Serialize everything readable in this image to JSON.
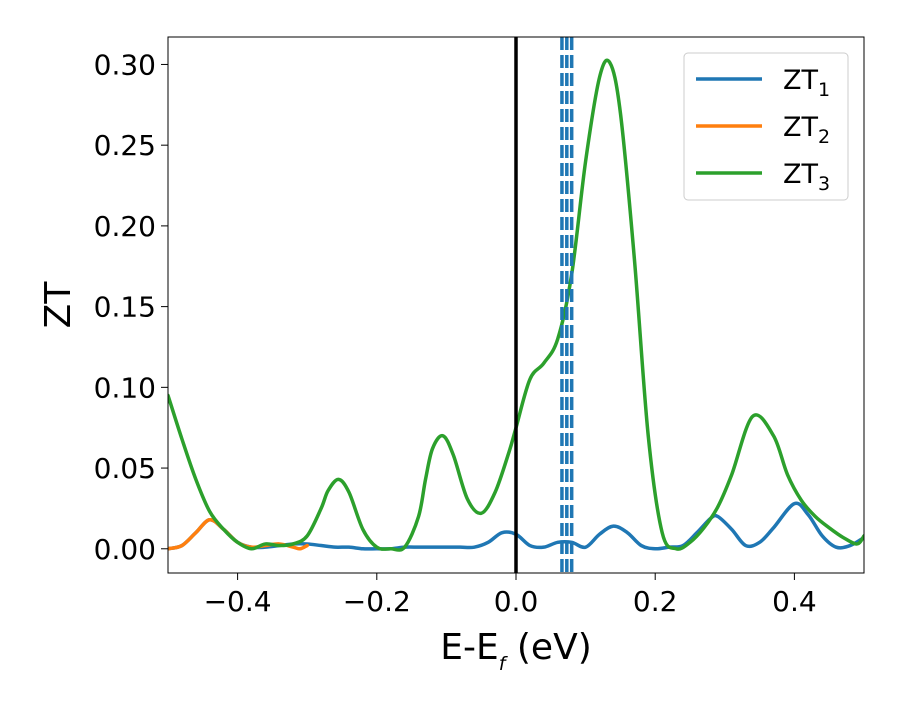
{
  "chart_data": {
    "type": "line",
    "title": "",
    "xlabel": "E-E",
    "xlabel_sub": "f",
    "xlabel_unit": " (eV)",
    "ylabel": "ZT",
    "xlim": [
      -0.5,
      0.5
    ],
    "ylim": [
      -0.015,
      0.317
    ],
    "x_ticks": [
      -0.4,
      -0.2,
      0.0,
      0.2,
      0.4
    ],
    "x_tick_labels": [
      "−0.4",
      "−0.2",
      "0.0",
      "0.2",
      "0.4"
    ],
    "y_ticks": [
      0.0,
      0.05,
      0.1,
      0.15,
      0.2,
      0.25,
      0.3
    ],
    "y_tick_labels": [
      "0.00",
      "0.05",
      "0.10",
      "0.15",
      "0.20",
      "0.25",
      "0.30"
    ],
    "grid": false,
    "legend_position": "top-right",
    "vertical_lines": [
      {
        "x": 0.0,
        "style": "solid",
        "color": "#000000"
      },
      {
        "x": 0.066,
        "style": "dashed",
        "color": "#1f77b4"
      },
      {
        "x": 0.073,
        "style": "dashed",
        "color": "#1f77b4"
      },
      {
        "x": 0.08,
        "style": "dashed",
        "color": "#1f77b4"
      }
    ],
    "series": [
      {
        "name": "ZT",
        "name_sub": "1",
        "color": "#1f77b4",
        "x": [
          -0.5,
          -0.48,
          -0.46,
          -0.44,
          -0.42,
          -0.4,
          -0.38,
          -0.36,
          -0.34,
          -0.32,
          -0.3,
          -0.28,
          -0.26,
          -0.24,
          -0.22,
          -0.2,
          -0.18,
          -0.16,
          -0.14,
          -0.12,
          -0.1,
          -0.08,
          -0.06,
          -0.04,
          -0.02,
          0.0,
          0.02,
          0.04,
          0.06,
          0.08,
          0.1,
          0.12,
          0.14,
          0.16,
          0.18,
          0.2,
          0.22,
          0.24,
          0.26,
          0.28,
          0.29,
          0.31,
          0.33,
          0.35,
          0.37,
          0.4,
          0.42,
          0.44,
          0.46,
          0.48,
          0.5
        ],
        "y": [
          0.0,
          0.002,
          0.01,
          0.018,
          0.012,
          0.004,
          0.001,
          0.001,
          0.002,
          0.003,
          0.003,
          0.002,
          0.001,
          0.001,
          0.0,
          0.0,
          0.0,
          0.001,
          0.001,
          0.001,
          0.001,
          0.001,
          0.001,
          0.004,
          0.01,
          0.009,
          0.002,
          0.001,
          0.004,
          0.004,
          0.001,
          0.009,
          0.014,
          0.01,
          0.002,
          0.0,
          0.001,
          0.002,
          0.01,
          0.019,
          0.02,
          0.012,
          0.002,
          0.004,
          0.013,
          0.028,
          0.021,
          0.008,
          0.001,
          0.002,
          0.007
        ]
      },
      {
        "name": "ZT",
        "name_sub": "2",
        "color": "#ff7f0e",
        "x": [
          -0.5,
          -0.48,
          -0.46,
          -0.44,
          -0.42,
          -0.4,
          -0.38,
          -0.36,
          -0.34,
          -0.32,
          -0.31,
          -0.3
        ],
        "y": [
          0.0,
          0.002,
          0.01,
          0.018,
          0.012,
          0.004,
          0.001,
          0.002,
          0.003,
          0.001,
          0.0,
          0.002
        ]
      },
      {
        "name": "ZT",
        "name_sub": "3",
        "color": "#2ca02c",
        "x": [
          -0.5,
          -0.48,
          -0.46,
          -0.44,
          -0.42,
          -0.4,
          -0.38,
          -0.36,
          -0.34,
          -0.32,
          -0.3,
          -0.28,
          -0.27,
          -0.255,
          -0.24,
          -0.22,
          -0.2,
          -0.18,
          -0.16,
          -0.14,
          -0.13,
          -0.12,
          -0.105,
          -0.09,
          -0.07,
          -0.05,
          -0.03,
          -0.01,
          0.0,
          0.02,
          0.04,
          0.06,
          0.08,
          0.1,
          0.12,
          0.135,
          0.15,
          0.17,
          0.19,
          0.21,
          0.23,
          0.25,
          0.27,
          0.29,
          0.31,
          0.34,
          0.37,
          0.39,
          0.41,
          0.43,
          0.45,
          0.47,
          0.49,
          0.5
        ],
        "y": [
          0.095,
          0.068,
          0.043,
          0.023,
          0.012,
          0.004,
          0.0,
          0.003,
          0.002,
          0.003,
          0.008,
          0.025,
          0.036,
          0.043,
          0.035,
          0.012,
          0.001,
          0.0,
          0.001,
          0.02,
          0.043,
          0.062,
          0.07,
          0.058,
          0.031,
          0.022,
          0.035,
          0.06,
          0.075,
          0.105,
          0.115,
          0.13,
          0.17,
          0.24,
          0.292,
          0.301,
          0.27,
          0.18,
          0.07,
          0.01,
          0.0,
          0.004,
          0.013,
          0.026,
          0.046,
          0.082,
          0.07,
          0.046,
          0.03,
          0.02,
          0.013,
          0.007,
          0.003,
          0.008
        ]
      }
    ]
  }
}
